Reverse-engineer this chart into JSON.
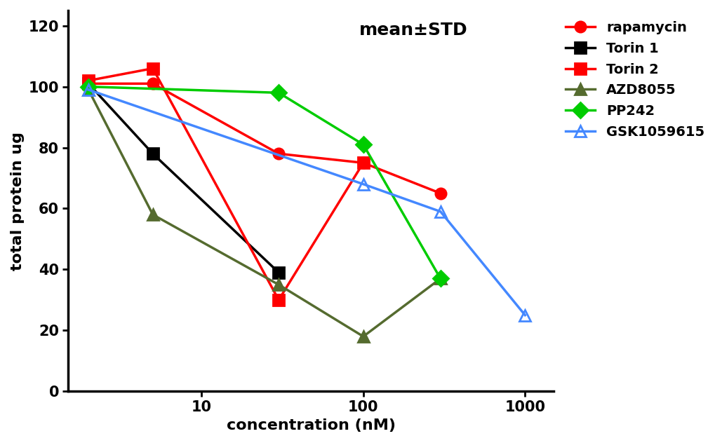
{
  "title": "mean±STD",
  "xlabel": "concentration (nM)",
  "ylabel": "total protein ug",
  "ylim": [
    0,
    125
  ],
  "yticks": [
    0,
    20,
    40,
    60,
    80,
    100,
    120
  ],
  "xlim": [
    1.5,
    1500
  ],
  "xticks": [
    10,
    100,
    1000
  ],
  "series": [
    {
      "name": "rapamycin",
      "color": "#ff0000",
      "marker": "o",
      "marker_filled": true,
      "x": [
        2,
        5,
        30,
        100,
        300
      ],
      "y": [
        101,
        101,
        78,
        75,
        65
      ],
      "yerr": [
        2,
        2,
        2,
        2,
        2
      ]
    },
    {
      "name": "Torin 1",
      "color": "#000000",
      "marker": "s",
      "marker_filled": true,
      "x": [
        2,
        5,
        30
      ],
      "y": [
        101,
        78,
        39
      ],
      "yerr": [
        2,
        2,
        2
      ]
    },
    {
      "name": "Torin 2",
      "color": "#ff0000",
      "marker": "s",
      "marker_filled": true,
      "x": [
        2,
        5,
        30,
        100
      ],
      "y": [
        102,
        106,
        30,
        75
      ],
      "yerr": [
        2,
        4,
        2,
        2
      ]
    },
    {
      "name": "AZD8055",
      "color": "#556b2f",
      "marker": "^",
      "marker_filled": true,
      "x": [
        2,
        5,
        30,
        100,
        300
      ],
      "y": [
        99,
        58,
        35,
        18,
        37
      ],
      "yerr": [
        2,
        2,
        2,
        2,
        2
      ]
    },
    {
      "name": "PP242",
      "color": "#00cc00",
      "marker": "D",
      "marker_filled": true,
      "x": [
        2,
        30,
        100,
        300
      ],
      "y": [
        100,
        98,
        81,
        37
      ],
      "yerr": [
        2,
        2,
        2,
        2
      ]
    },
    {
      "name": "GSK1059615",
      "color": "#4488ff",
      "marker": "^",
      "marker_filled": false,
      "x": [
        2,
        100,
        300,
        1000
      ],
      "y": [
        99,
        68,
        59,
        25
      ],
      "yerr": [
        2,
        2,
        2,
        2
      ]
    }
  ],
  "line_width": 2.5,
  "marker_size": 11,
  "background_color": "#ffffff",
  "legend_fontsize": 14,
  "axis_fontsize": 16,
  "tick_fontsize": 15,
  "annotation_fontsize": 18
}
